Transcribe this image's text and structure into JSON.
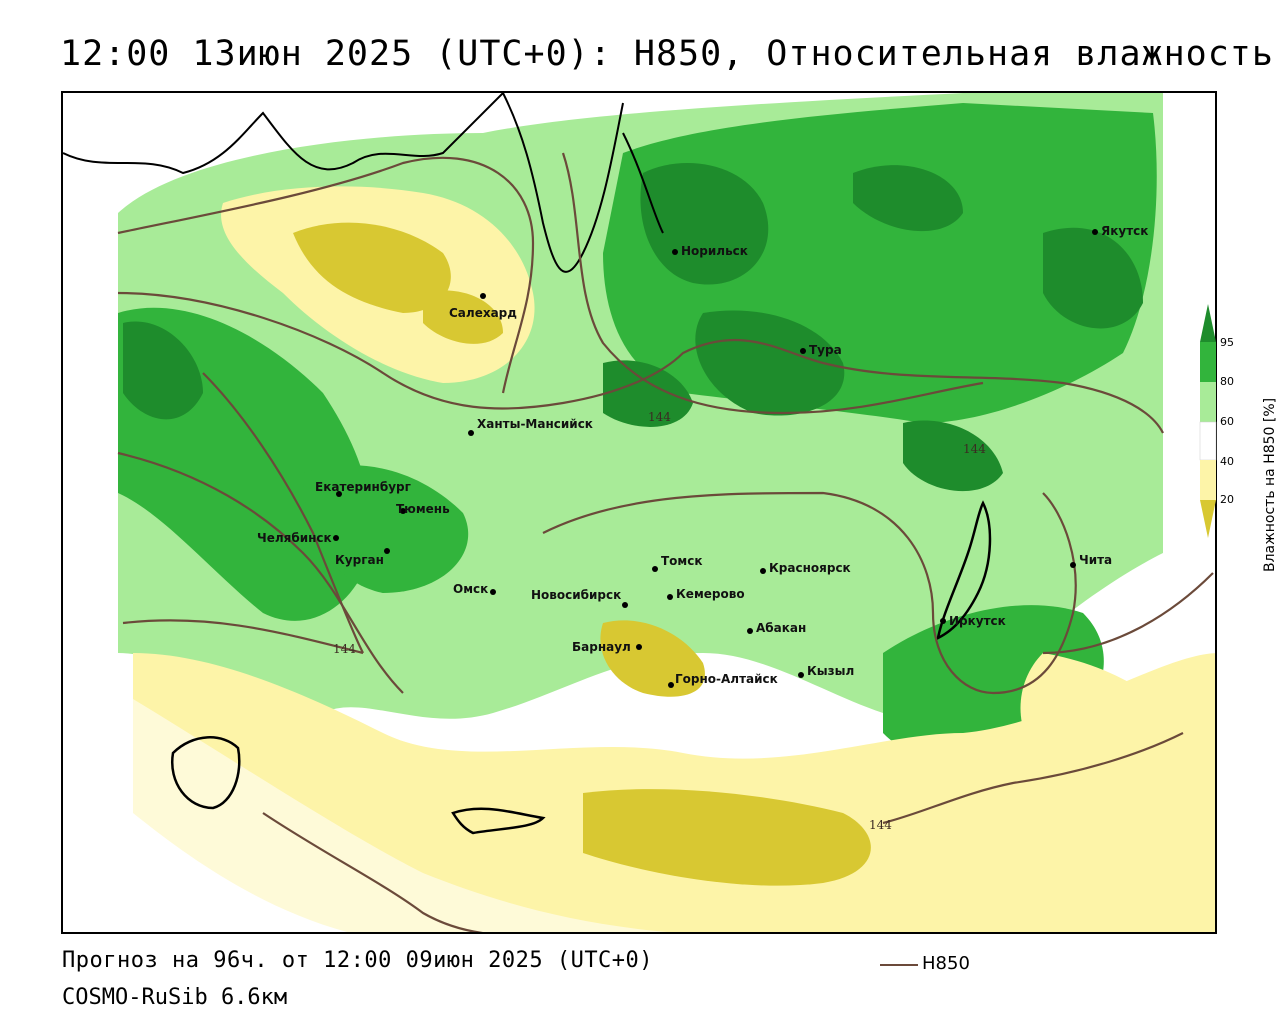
{
  "title": "12:00 13июн 2025 (UTC+0): H850, Относительная влажность",
  "footer": {
    "forecast": "Прогноз на 96ч. от 12:00 09июн 2025 (UTC+0)",
    "model": "COSMO-RuSib 6.6км"
  },
  "legend": {
    "title": "Влажность на H850 [%]",
    "ticks": [
      "95",
      "80",
      "60",
      "40",
      "20"
    ],
    "colors": {
      "95": "#1e8c2c",
      "80": "#32b43c",
      "60": "#a8eb98",
      "40": "#ffffff",
      "20": "#fdf4a8",
      "below20": "#d8c832"
    },
    "line_label": "H850"
  },
  "contour_labels": [
    "144",
    "144",
    "144",
    "144"
  ],
  "cities": [
    {
      "name": "Норильск"
    },
    {
      "name": "Якутск"
    },
    {
      "name": "Салехард"
    },
    {
      "name": "Тура"
    },
    {
      "name": "Ханты-Мансийск"
    },
    {
      "name": "Екатеринбург"
    },
    {
      "name": "Тюмень"
    },
    {
      "name": "Челябинск"
    },
    {
      "name": "Курган"
    },
    {
      "name": "Омск"
    },
    {
      "name": "Томск"
    },
    {
      "name": "Новосибирск"
    },
    {
      "name": "Кемерово"
    },
    {
      "name": "Красноярск"
    },
    {
      "name": "Барнаул"
    },
    {
      "name": "Абакан"
    },
    {
      "name": "Горно-Алтайск"
    },
    {
      "name": "Кызыл"
    },
    {
      "name": "Иркутск"
    },
    {
      "name": "Чита"
    }
  ]
}
